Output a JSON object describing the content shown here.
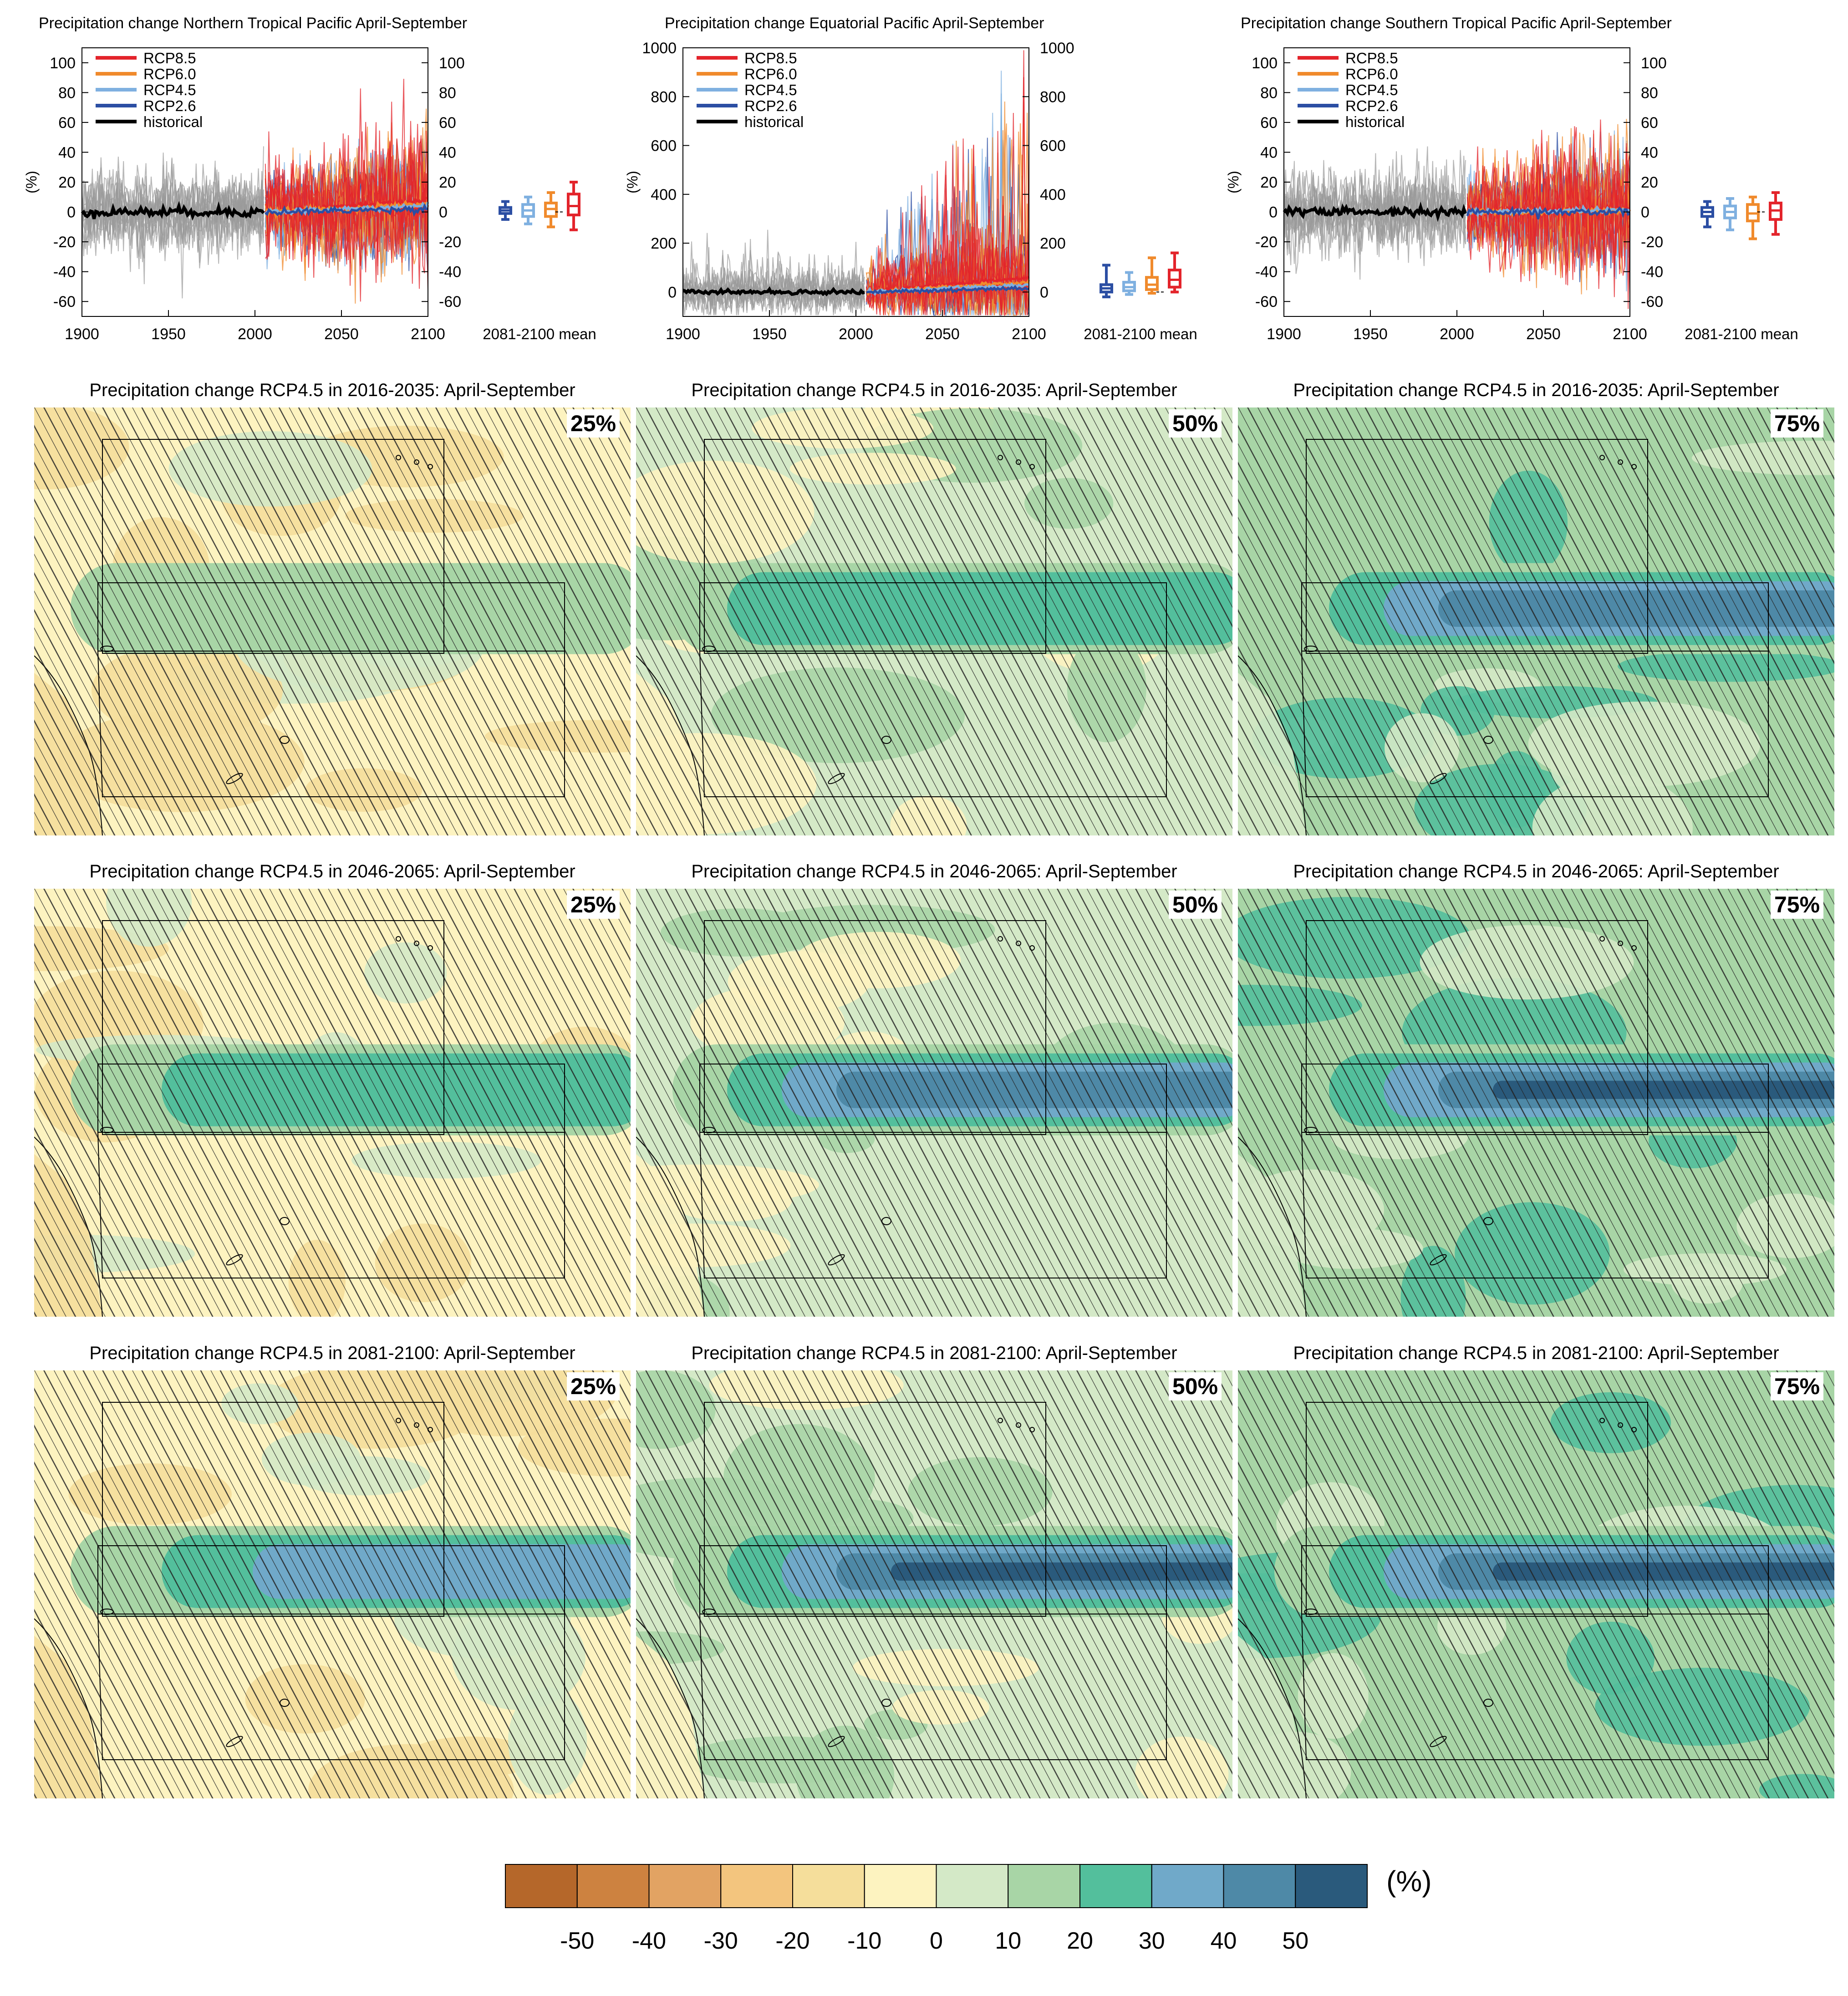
{
  "colorbar": {
    "colors": [
      "#b5672a",
      "#cd8240",
      "#e2a363",
      "#f3c57e",
      "#f5de9b",
      "#fdf3c0",
      "#d4e9c7",
      "#a8d5a6",
      "#53bf9c",
      "#70a9c9",
      "#4e89a7",
      "#2a5a7c"
    ],
    "ticks": [
      "-50",
      "-40",
      "-30",
      "-20",
      "-10",
      "0",
      "10",
      "20",
      "30",
      "40",
      "50"
    ],
    "unit": "(%)"
  },
  "timeseries": [
    {
      "title": "Precipitation change Northern Tropical Pacific April-September",
      "ylabel": "(%)",
      "yticks": [
        "100",
        "80",
        "60",
        "40",
        "20",
        "0",
        "-20",
        "-40",
        "-60"
      ],
      "xticks": [
        "1900",
        "1950",
        "2000",
        "2050",
        "2100"
      ],
      "mean_label": "2081-2100 mean",
      "legend": [
        "RCP8.5",
        "RCP6.0",
        "RCP4.5",
        "RCP2.6",
        "historical"
      ]
    },
    {
      "title": "Precipitation change Equatorial Pacific April-September",
      "ylabel": "(%)",
      "yticks": [
        "1000",
        "800",
        "600",
        "400",
        "200",
        "0"
      ],
      "xticks": [
        "1900",
        "1950",
        "2000",
        "2050",
        "2100"
      ],
      "mean_label": "2081-2100 mean",
      "legend": [
        "RCP8.5",
        "RCP6.0",
        "RCP4.5",
        "RCP2.6",
        "historical"
      ]
    },
    {
      "title": "Precipitation change Southern Tropical Pacific April-September",
      "ylabel": "(%)",
      "yticks": [
        "100",
        "80",
        "60",
        "40",
        "20",
        "0",
        "-20",
        "-40",
        "-60"
      ],
      "xticks": [
        "1900",
        "1950",
        "2000",
        "2050",
        "2100"
      ],
      "mean_label": "2081-2100 mean",
      "legend": [
        "RCP8.5",
        "RCP6.0",
        "RCP4.5",
        "RCP2.6",
        "historical"
      ]
    }
  ],
  "series_colors": {
    "RCP8.5": "#e3242b",
    "RCP6.0": "#f08a2c",
    "RCP4.5": "#7fb0e0",
    "RCP2.6": "#2b4ea3",
    "historical": "#000000",
    "ensemble": "#9a9a9a"
  },
  "maps": [
    {
      "title": "Precipitation change RCP4.5 in 2016-2035: April-September",
      "percentile": "25%"
    },
    {
      "title": "Precipitation change RCP4.5 in 2016-2035: April-September",
      "percentile": "50%"
    },
    {
      "title": "Precipitation change RCP4.5 in 2016-2035: April-September",
      "percentile": "75%"
    },
    {
      "title": "Precipitation change RCP4.5 in 2046-2065: April-September",
      "percentile": "25%"
    },
    {
      "title": "Precipitation change RCP4.5 in 2046-2065: April-September",
      "percentile": "50%"
    },
    {
      "title": "Precipitation change RCP4.5 in 2046-2065: April-September",
      "percentile": "75%"
    },
    {
      "title": "Precipitation change RCP4.5 in 2081-2100: April-September",
      "percentile": "25%"
    },
    {
      "title": "Precipitation change RCP4.5 in 2081-2100: April-September",
      "percentile": "50%"
    },
    {
      "title": "Precipitation change RCP4.5 in 2081-2100: April-September",
      "percentile": "75%"
    }
  ],
  "chart_data": [
    {
      "type": "line",
      "title": "Precipitation change Northern Tropical Pacific April-September",
      "xlabel": "",
      "ylabel": "(%)",
      "xlim": [
        1900,
        2100
      ],
      "ylim": [
        -70,
        110
      ],
      "series": [
        {
          "name": "historical",
          "x": [
            1900,
            2005
          ],
          "values": [
            0,
            0
          ]
        },
        {
          "name": "RCP8.5",
          "x": [
            2006,
            2100
          ],
          "values": [
            0,
            8
          ]
        },
        {
          "name": "RCP6.0",
          "x": [
            2006,
            2100
          ],
          "values": [
            0,
            5
          ]
        },
        {
          "name": "RCP4.5",
          "x": [
            2006,
            2100
          ],
          "values": [
            0,
            4
          ]
        },
        {
          "name": "RCP2.6",
          "x": [
            2006,
            2100
          ],
          "values": [
            0,
            2
          ]
        }
      ],
      "boxes_2081_2100": [
        {
          "name": "RCP2.6",
          "min": -5,
          "q1": -1,
          "median": 1,
          "q3": 3,
          "max": 7
        },
        {
          "name": "RCP4.5",
          "min": -8,
          "q1": -3,
          "median": 1,
          "q3": 5,
          "max": 10
        },
        {
          "name": "RCP6.0",
          "min": -10,
          "q1": -3,
          "median": 2,
          "q3": 6,
          "max": 13
        },
        {
          "name": "RCP8.5",
          "min": -12,
          "q1": -2,
          "median": 4,
          "q3": 12,
          "max": 20
        }
      ]
    },
    {
      "type": "line",
      "title": "Precipitation change Equatorial Pacific April-September",
      "xlabel": "",
      "ylabel": "(%)",
      "xlim": [
        1900,
        2100
      ],
      "ylim": [
        -100,
        1000
      ],
      "series": [
        {
          "name": "historical",
          "x": [
            1900,
            2005
          ],
          "values": [
            0,
            0
          ]
        },
        {
          "name": "RCP8.5",
          "x": [
            2006,
            2100
          ],
          "values": [
            0,
            60
          ]
        },
        {
          "name": "RCP6.0",
          "x": [
            2006,
            2100
          ],
          "values": [
            0,
            40
          ]
        },
        {
          "name": "RCP4.5",
          "x": [
            2006,
            2100
          ],
          "values": [
            0,
            30
          ]
        },
        {
          "name": "RCP2.6",
          "x": [
            2006,
            2100
          ],
          "values": [
            0,
            15
          ]
        }
      ],
      "boxes_2081_2100": [
        {
          "name": "RCP2.6",
          "min": -20,
          "q1": 0,
          "median": 15,
          "q3": 30,
          "max": 110
        },
        {
          "name": "RCP4.5",
          "min": -10,
          "q1": 5,
          "median": 20,
          "q3": 40,
          "max": 80
        },
        {
          "name": "RCP6.0",
          "min": -5,
          "q1": 10,
          "median": 30,
          "q3": 60,
          "max": 140
        },
        {
          "name": "RCP8.5",
          "min": 0,
          "q1": 20,
          "median": 50,
          "q3": 90,
          "max": 160
        }
      ]
    },
    {
      "type": "line",
      "title": "Precipitation change Southern Tropical Pacific April-September",
      "xlabel": "",
      "ylabel": "(%)",
      "xlim": [
        1900,
        2100
      ],
      "ylim": [
        -70,
        110
      ],
      "series": [
        {
          "name": "historical",
          "x": [
            1900,
            2005
          ],
          "values": [
            0,
            0
          ]
        },
        {
          "name": "RCP8.5",
          "x": [
            2006,
            2100
          ],
          "values": [
            0,
            2
          ]
        },
        {
          "name": "RCP6.0",
          "x": [
            2006,
            2100
          ],
          "values": [
            0,
            1
          ]
        },
        {
          "name": "RCP4.5",
          "x": [
            2006,
            2100
          ],
          "values": [
            0,
            1
          ]
        },
        {
          "name": "RCP2.6",
          "x": [
            2006,
            2100
          ],
          "values": [
            0,
            0
          ]
        }
      ],
      "boxes_2081_2100": [
        {
          "name": "RCP2.6",
          "min": -10,
          "q1": -3,
          "median": 0,
          "q3": 3,
          "max": 7
        },
        {
          "name": "RCP4.5",
          "min": -12,
          "q1": -4,
          "median": 0,
          "q3": 4,
          "max": 9
        },
        {
          "name": "RCP6.0",
          "min": -18,
          "q1": -6,
          "median": -1,
          "q3": 5,
          "max": 10
        },
        {
          "name": "RCP8.5",
          "min": -15,
          "q1": -5,
          "median": 1,
          "q3": 6,
          "max": 13
        }
      ]
    },
    {
      "type": "heatmap",
      "title": "Precipitation change RCP4.5 April-September (maps)",
      "rows": [
        "2016-2035",
        "2046-2065",
        "2081-2100"
      ],
      "columns": [
        "25%",
        "50%",
        "75%"
      ],
      "equatorial_band_max_change_pct": [
        [
          10,
          20,
          40
        ],
        [
          20,
          40,
          50
        ],
        [
          30,
          50,
          50
        ]
      ],
      "background_change_pct": [
        [
          -10,
          0,
          10
        ],
        [
          -10,
          0,
          10
        ],
        [
          -10,
          0,
          10
        ]
      ]
    }
  ]
}
